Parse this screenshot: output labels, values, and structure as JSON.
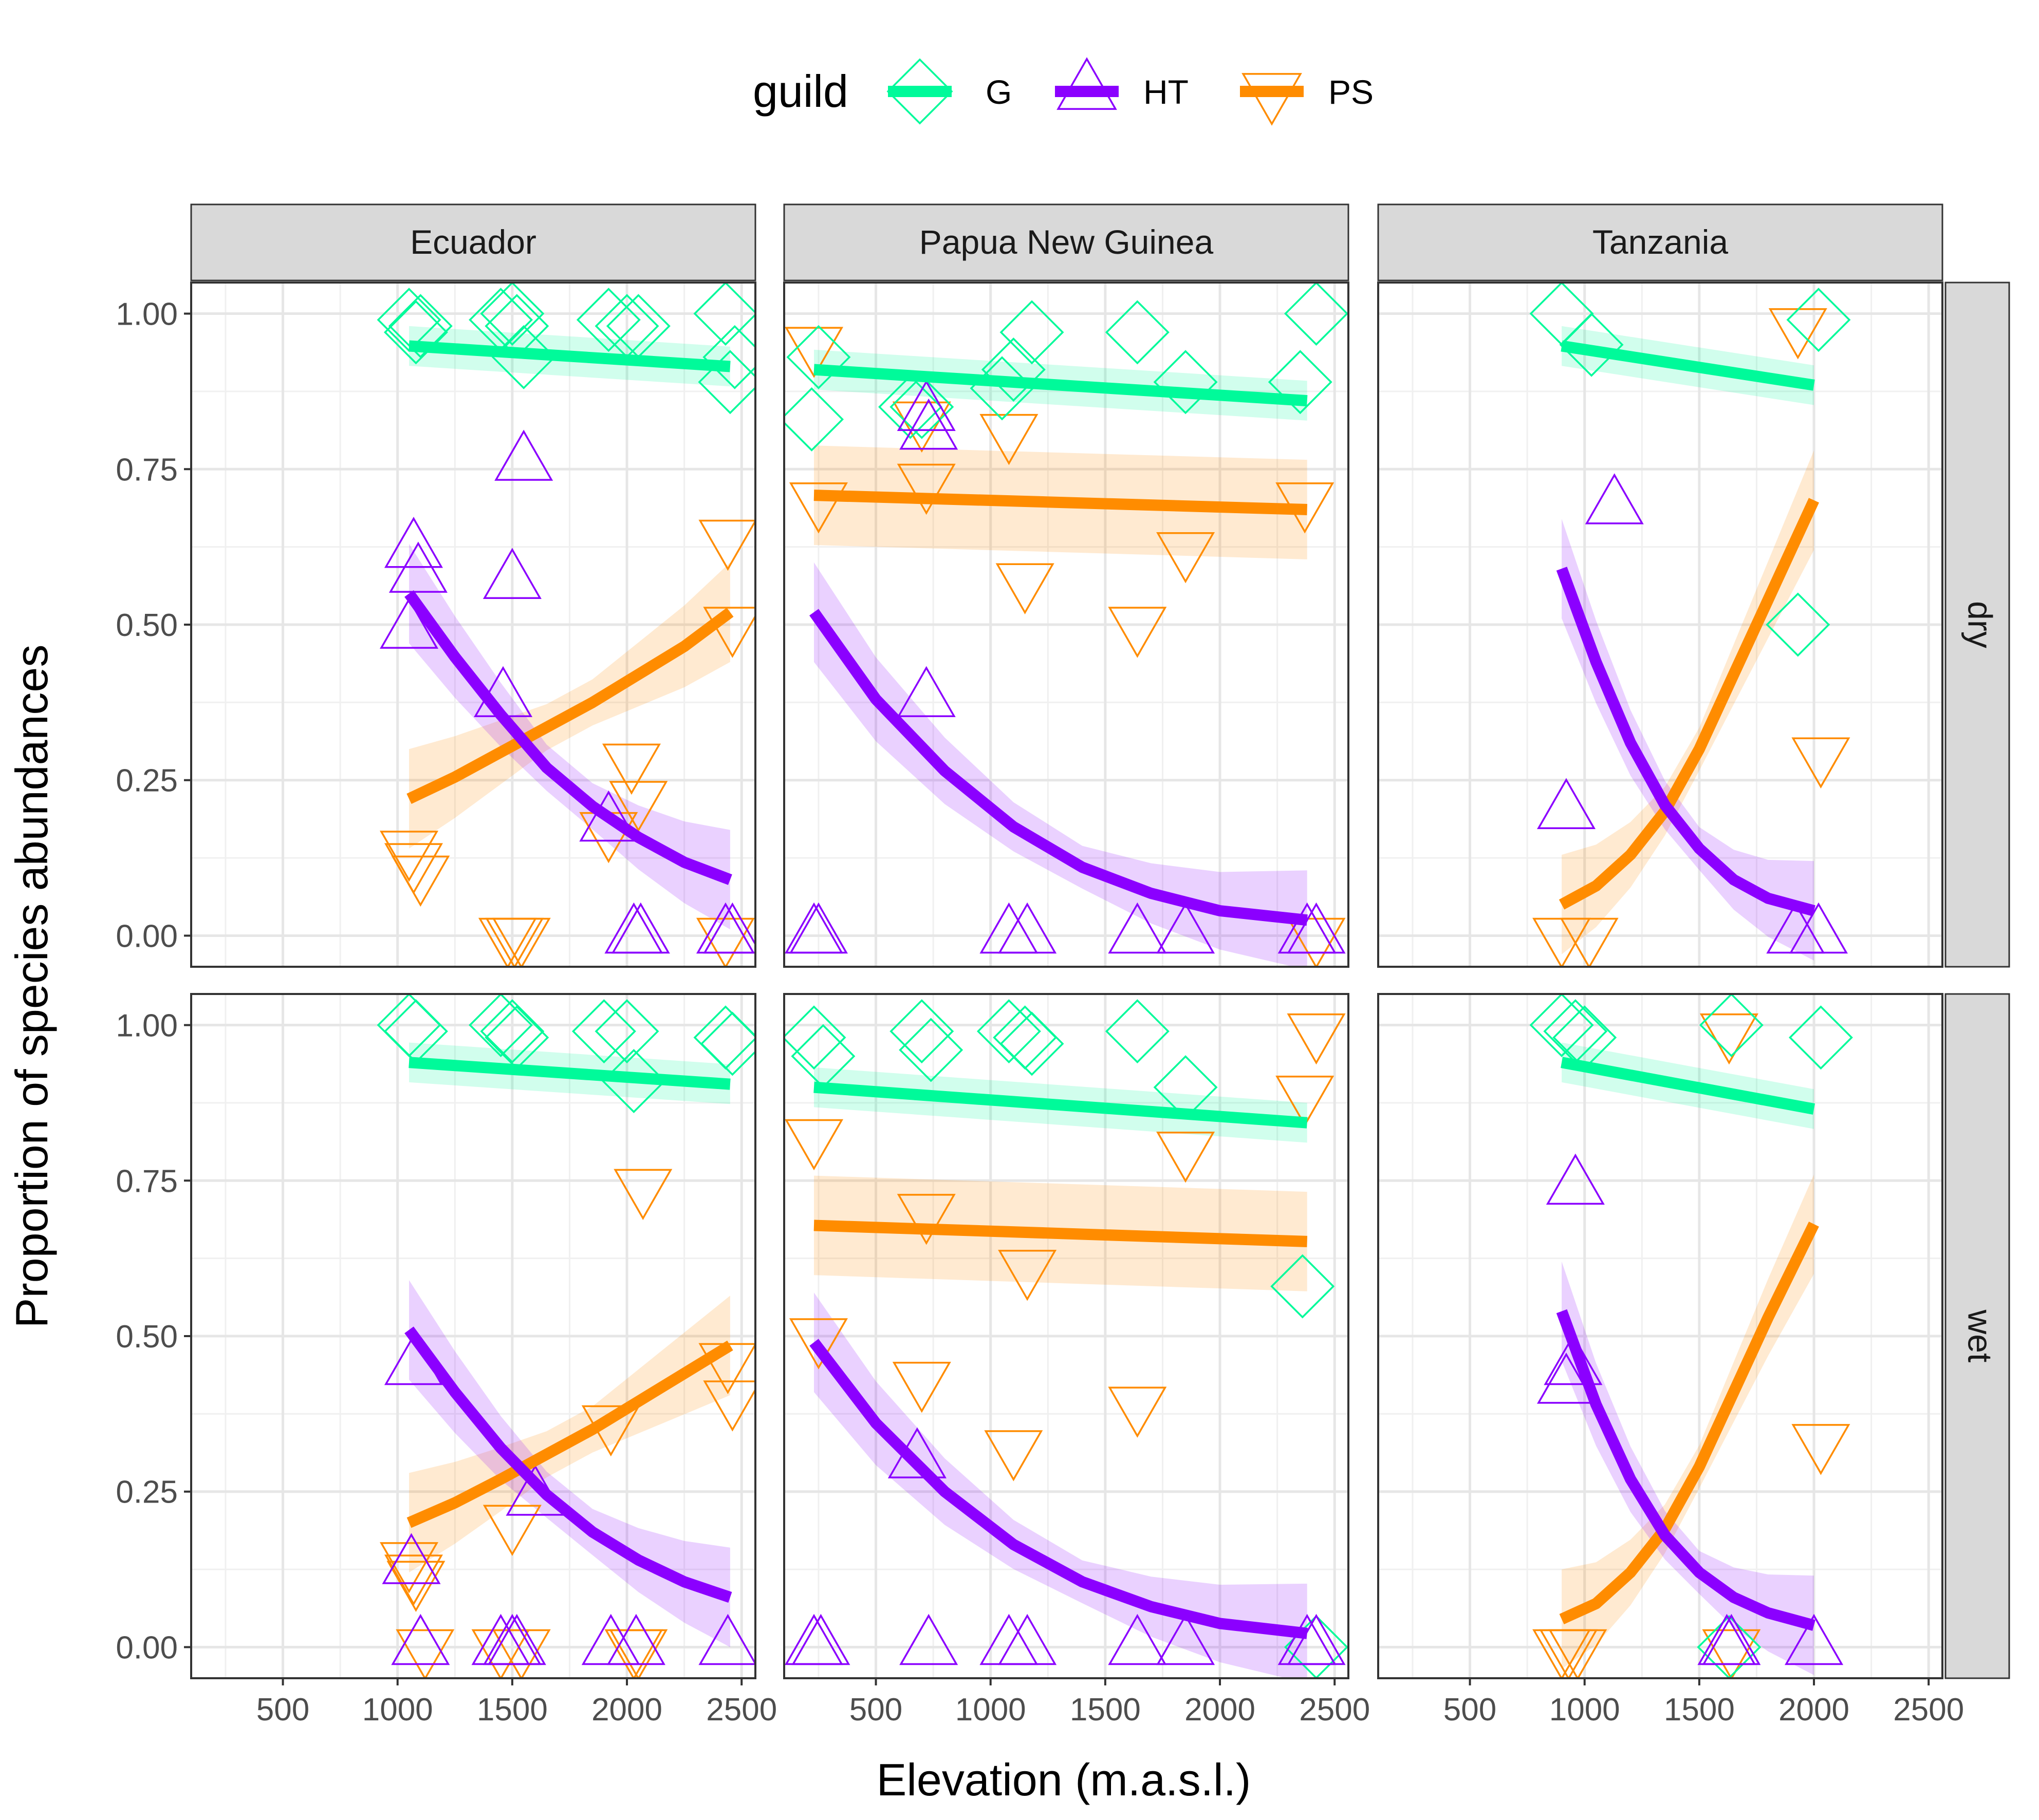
{
  "chart_data": {
    "type": "scatter",
    "xlabel": "Elevation (m.a.s.l.)",
    "ylabel": "Proportion of species abundances",
    "xlim": [
      100,
      2560
    ],
    "ylim": [
      -0.05,
      1.05
    ],
    "x_ticks": [
      500,
      1000,
      1500,
      2000,
      2500
    ],
    "y_ticks": [
      0,
      0.25,
      0.5,
      0.75,
      1
    ],
    "y_tick_labels": [
      "0.00",
      "0.25",
      "0.50",
      "0.75",
      "1.00"
    ],
    "grid": true,
    "legend": {
      "title": "guild",
      "position": "top",
      "entries": [
        {
          "label": "G",
          "color": "#00FA9A",
          "shape": "diamond"
        },
        {
          "label": "HT",
          "color": "#8B00FF",
          "shape": "triangle-up"
        },
        {
          "label": "PS",
          "color": "#FF8C00",
          "shape": "triangle-down"
        }
      ]
    },
    "columns": [
      "Ecuador",
      "Papua New Guinea",
      "Tanzania"
    ],
    "rows": [
      "dry",
      "wet"
    ],
    "panels": [
      {
        "column": "Ecuador",
        "row": "dry",
        "points": {
          "G": [
            [
              1050,
              0.99
            ],
            [
              1080,
              0.97
            ],
            [
              1100,
              0.98
            ],
            [
              1450,
              0.99
            ],
            [
              1500,
              1.0
            ],
            [
              1520,
              0.98
            ],
            [
              1550,
              0.93
            ],
            [
              1920,
              0.99
            ],
            [
              2000,
              0.98
            ],
            [
              2050,
              0.98
            ],
            [
              2430,
              1.0
            ],
            [
              2450,
              0.89
            ],
            [
              2470,
              0.93
            ]
          ],
          "HT": [
            [
              1050,
              0.49
            ],
            [
              1070,
              0.62
            ],
            [
              1090,
              0.58
            ],
            [
              1460,
              0.38
            ],
            [
              1500,
              0.57
            ],
            [
              1550,
              0.76
            ],
            [
              1920,
              0.18
            ],
            [
              2030,
              0.0
            ],
            [
              2060,
              0.0
            ],
            [
              2430,
              0.0
            ],
            [
              2460,
              0.0
            ]
          ],
          "PS": [
            [
              1050,
              0.14
            ],
            [
              1070,
              0.12
            ],
            [
              1100,
              0.1
            ],
            [
              1480,
              0.0
            ],
            [
              1510,
              0.0
            ],
            [
              1540,
              0.0
            ],
            [
              1920,
              0.17
            ],
            [
              2020,
              0.28
            ],
            [
              2050,
              0.22
            ],
            [
              2430,
              0.0
            ],
            [
              2440,
              0.64
            ],
            [
              2460,
              0.5
            ]
          ]
        },
        "fits": {
          "G": {
            "x": [
              1050,
              2450
            ],
            "y": [
              0.948,
              0.915
            ]
          },
          "HT": {
            "x": [
              1050,
              1250,
              1450,
              1650,
              1850,
              2050,
              2250,
              2450
            ],
            "y": [
              0.55,
              0.448,
              0.355,
              0.27,
              0.208,
              0.158,
              0.118,
              0.09
            ]
          },
          "PS": {
            "x": [
              1050,
              1250,
              1450,
              1650,
              1850,
              2050,
              2250,
              2450
            ],
            "y": [
              0.22,
              0.255,
              0.295,
              0.335,
              0.375,
              0.42,
              0.465,
              0.52
            ]
          }
        }
      },
      {
        "column": "Papua New Guinea",
        "row": "dry",
        "points": {
          "G": [
            [
              220,
              0.83
            ],
            [
              250,
              0.93
            ],
            [
              650,
              0.85
            ],
            [
              700,
              0.85
            ],
            [
              1050,
              0.88
            ],
            [
              1100,
              0.91
            ],
            [
              1180,
              0.97
            ],
            [
              1640,
              0.97
            ],
            [
              1850,
              0.89
            ],
            [
              2350,
              0.89
            ],
            [
              2420,
              1.0
            ]
          ],
          "HT": [
            [
              230,
              0.0
            ],
            [
              250,
              0.0
            ],
            [
              720,
              0.38
            ],
            [
              720,
              0.84
            ],
            [
              730,
              0.81
            ],
            [
              1080,
              0.0
            ],
            [
              1160,
              0.0
            ],
            [
              1640,
              0.0
            ],
            [
              1850,
              0.0
            ],
            [
              2380,
              0.0
            ],
            [
              2420,
              0.0
            ]
          ],
          "PS": [
            [
              230,
              0.95
            ],
            [
              250,
              0.7
            ],
            [
              700,
              0.83
            ],
            [
              720,
              0.73
            ],
            [
              1080,
              0.81
            ],
            [
              1150,
              0.57
            ],
            [
              1640,
              0.5
            ],
            [
              1850,
              0.62
            ],
            [
              2370,
              0.7
            ],
            [
              2420,
              0.0
            ]
          ]
        },
        "fits": {
          "G": {
            "x": [
              230,
              2380
            ],
            "y": [
              0.91,
              0.86
            ]
          },
          "HT": {
            "x": [
              230,
              500,
              800,
              1100,
              1400,
              1700,
              2000,
              2380
            ],
            "y": [
              0.52,
              0.38,
              0.265,
              0.175,
              0.11,
              0.068,
              0.04,
              0.025
            ]
          },
          "PS": {
            "x": [
              230,
              2380
            ],
            "y": [
              0.708,
              0.685
            ]
          }
        }
      },
      {
        "column": "Tanzania",
        "row": "dry",
        "points": {
          "G": [
            [
              900,
              1.0
            ],
            [
              1030,
              0.95
            ],
            [
              1930,
              0.5
            ],
            [
              2020,
              0.99
            ]
          ],
          "HT": [
            [
              920,
              0.2
            ],
            [
              1130,
              0.69
            ],
            [
              1920,
              0.0
            ],
            [
              2020,
              0.0
            ]
          ],
          "PS": [
            [
              900,
              0.0
            ],
            [
              1020,
              0.0
            ],
            [
              1930,
              0.98
            ],
            [
              2030,
              0.29
            ]
          ]
        },
        "fits": {
          "G": {
            "x": [
              900,
              2000
            ],
            "y": [
              0.948,
              0.885
            ]
          },
          "HT": {
            "x": [
              900,
              1050,
              1200,
              1350,
              1500,
              1650,
              1800,
              2000
            ],
            "y": [
              0.59,
              0.44,
              0.31,
              0.21,
              0.14,
              0.09,
              0.06,
              0.04
            ]
          },
          "PS": {
            "x": [
              900,
              1050,
              1200,
              1350,
              1500,
              1650,
              1800,
              2000
            ],
            "y": [
              0.05,
              0.08,
              0.13,
              0.2,
              0.3,
              0.42,
              0.54,
              0.7
            ]
          }
        }
      },
      {
        "column": "Ecuador",
        "row": "wet",
        "points": {
          "G": [
            [
              1050,
              1.0
            ],
            [
              1080,
              0.99
            ],
            [
              1450,
              1.0
            ],
            [
              1500,
              0.99
            ],
            [
              1520,
              0.98
            ],
            [
              1900,
              0.99
            ],
            [
              2000,
              0.99
            ],
            [
              2030,
              0.91
            ],
            [
              2430,
              0.98
            ],
            [
              2460,
              0.97
            ]
          ],
          "HT": [
            [
              1060,
              0.13
            ],
            [
              1070,
              0.45
            ],
            [
              1100,
              0.0
            ],
            [
              1450,
              0.0
            ],
            [
              1500,
              0.0
            ],
            [
              1520,
              0.0
            ],
            [
              1600,
              0.24
            ],
            [
              1930,
              0.0
            ],
            [
              2040,
              0.0
            ],
            [
              2440,
              0.0
            ]
          ],
          "PS": [
            [
              1050,
              0.14
            ],
            [
              1070,
              0.12
            ],
            [
              1080,
              0.11
            ],
            [
              1120,
              0.0
            ],
            [
              1450,
              0.0
            ],
            [
              1500,
              0.2
            ],
            [
              1540,
              0.0
            ],
            [
              1930,
              0.36
            ],
            [
              2030,
              0.0
            ],
            [
              2050,
              0.0
            ],
            [
              2070,
              0.74
            ],
            [
              2440,
              0.46
            ],
            [
              2460,
              0.4
            ]
          ]
        },
        "fits": {
          "G": {
            "x": [
              1050,
              2450
            ],
            "y": [
              0.94,
              0.905
            ]
          },
          "HT": {
            "x": [
              1050,
              1250,
              1450,
              1650,
              1850,
              2050,
              2250,
              2450
            ],
            "y": [
              0.51,
              0.41,
              0.32,
              0.245,
              0.185,
              0.14,
              0.105,
              0.08
            ]
          },
          "PS": {
            "x": [
              1050,
              1250,
              1450,
              1650,
              1850,
              2050,
              2250,
              2450
            ],
            "y": [
              0.2,
              0.232,
              0.27,
              0.31,
              0.35,
              0.395,
              0.44,
              0.485
            ]
          }
        }
      },
      {
        "column": "Papua New Guinea",
        "row": "wet",
        "points": {
          "G": [
            [
              230,
              0.98
            ],
            [
              270,
              0.95
            ],
            [
              700,
              0.99
            ],
            [
              740,
              0.96
            ],
            [
              1080,
              0.99
            ],
            [
              1150,
              0.98
            ],
            [
              1180,
              0.97
            ],
            [
              1640,
              0.99
            ],
            [
              1850,
              0.9
            ],
            [
              2360,
              0.58
            ],
            [
              2420,
              0.0
            ]
          ],
          "HT": [
            [
              230,
              0.0
            ],
            [
              260,
              0.0
            ],
            [
              680,
              0.3
            ],
            [
              730,
              0.0
            ],
            [
              1080,
              0.0
            ],
            [
              1160,
              0.0
            ],
            [
              1640,
              0.0
            ],
            [
              1850,
              0.0
            ],
            [
              2380,
              0.0
            ],
            [
              2420,
              0.0
            ]
          ],
          "PS": [
            [
              230,
              0.82
            ],
            [
              250,
              0.5
            ],
            [
              700,
              0.43
            ],
            [
              720,
              0.7
            ],
            [
              1100,
              0.32
            ],
            [
              1160,
              0.61
            ],
            [
              1640,
              0.39
            ],
            [
              1850,
              0.8
            ],
            [
              2370,
              0.89
            ],
            [
              2420,
              0.99
            ]
          ]
        },
        "fits": {
          "G": {
            "x": [
              230,
              2380
            ],
            "y": [
              0.9,
              0.843
            ]
          },
          "HT": {
            "x": [
              230,
              500,
              800,
              1100,
              1400,
              1700,
              2000,
              2380
            ],
            "y": [
              0.49,
              0.36,
              0.25,
              0.165,
              0.105,
              0.065,
              0.038,
              0.022
            ]
          },
          "PS": {
            "x": [
              230,
              2380
            ],
            "y": [
              0.678,
              0.652
            ]
          }
        }
      },
      {
        "column": "Tanzania",
        "row": "wet",
        "points": {
          "G": [
            [
              900,
              1.0
            ],
            [
              960,
              0.99
            ],
            [
              1000,
              0.98
            ],
            [
              1640,
              1.0
            ],
            [
              1630,
              0.0
            ],
            [
              2030,
              0.98
            ]
          ],
          "HT": [
            [
              920,
              0.42
            ],
            [
              950,
              0.45
            ],
            [
              960,
              0.74
            ],
            [
              1620,
              0.0
            ],
            [
              1640,
              0.0
            ],
            [
              2000,
              0.0
            ]
          ],
          "PS": [
            [
              900,
              0.0
            ],
            [
              930,
              0.0
            ],
            [
              970,
              0.0
            ],
            [
              1630,
              0.99
            ],
            [
              1640,
              0.0
            ],
            [
              2030,
              0.33
            ]
          ]
        },
        "fits": {
          "G": {
            "x": [
              900,
              2000
            ],
            "y": [
              0.94,
              0.865
            ]
          },
          "HT": {
            "x": [
              900,
              1050,
              1200,
              1350,
              1500,
              1650,
              1800,
              2000
            ],
            "y": [
              0.54,
              0.39,
              0.27,
              0.18,
              0.12,
              0.08,
              0.055,
              0.035
            ]
          },
          "PS": {
            "x": [
              900,
              1050,
              1200,
              1350,
              1500,
              1650,
              1800,
              2000
            ],
            "y": [
              0.045,
              0.07,
              0.12,
              0.19,
              0.29,
              0.41,
              0.53,
              0.68
            ]
          }
        }
      }
    ]
  }
}
